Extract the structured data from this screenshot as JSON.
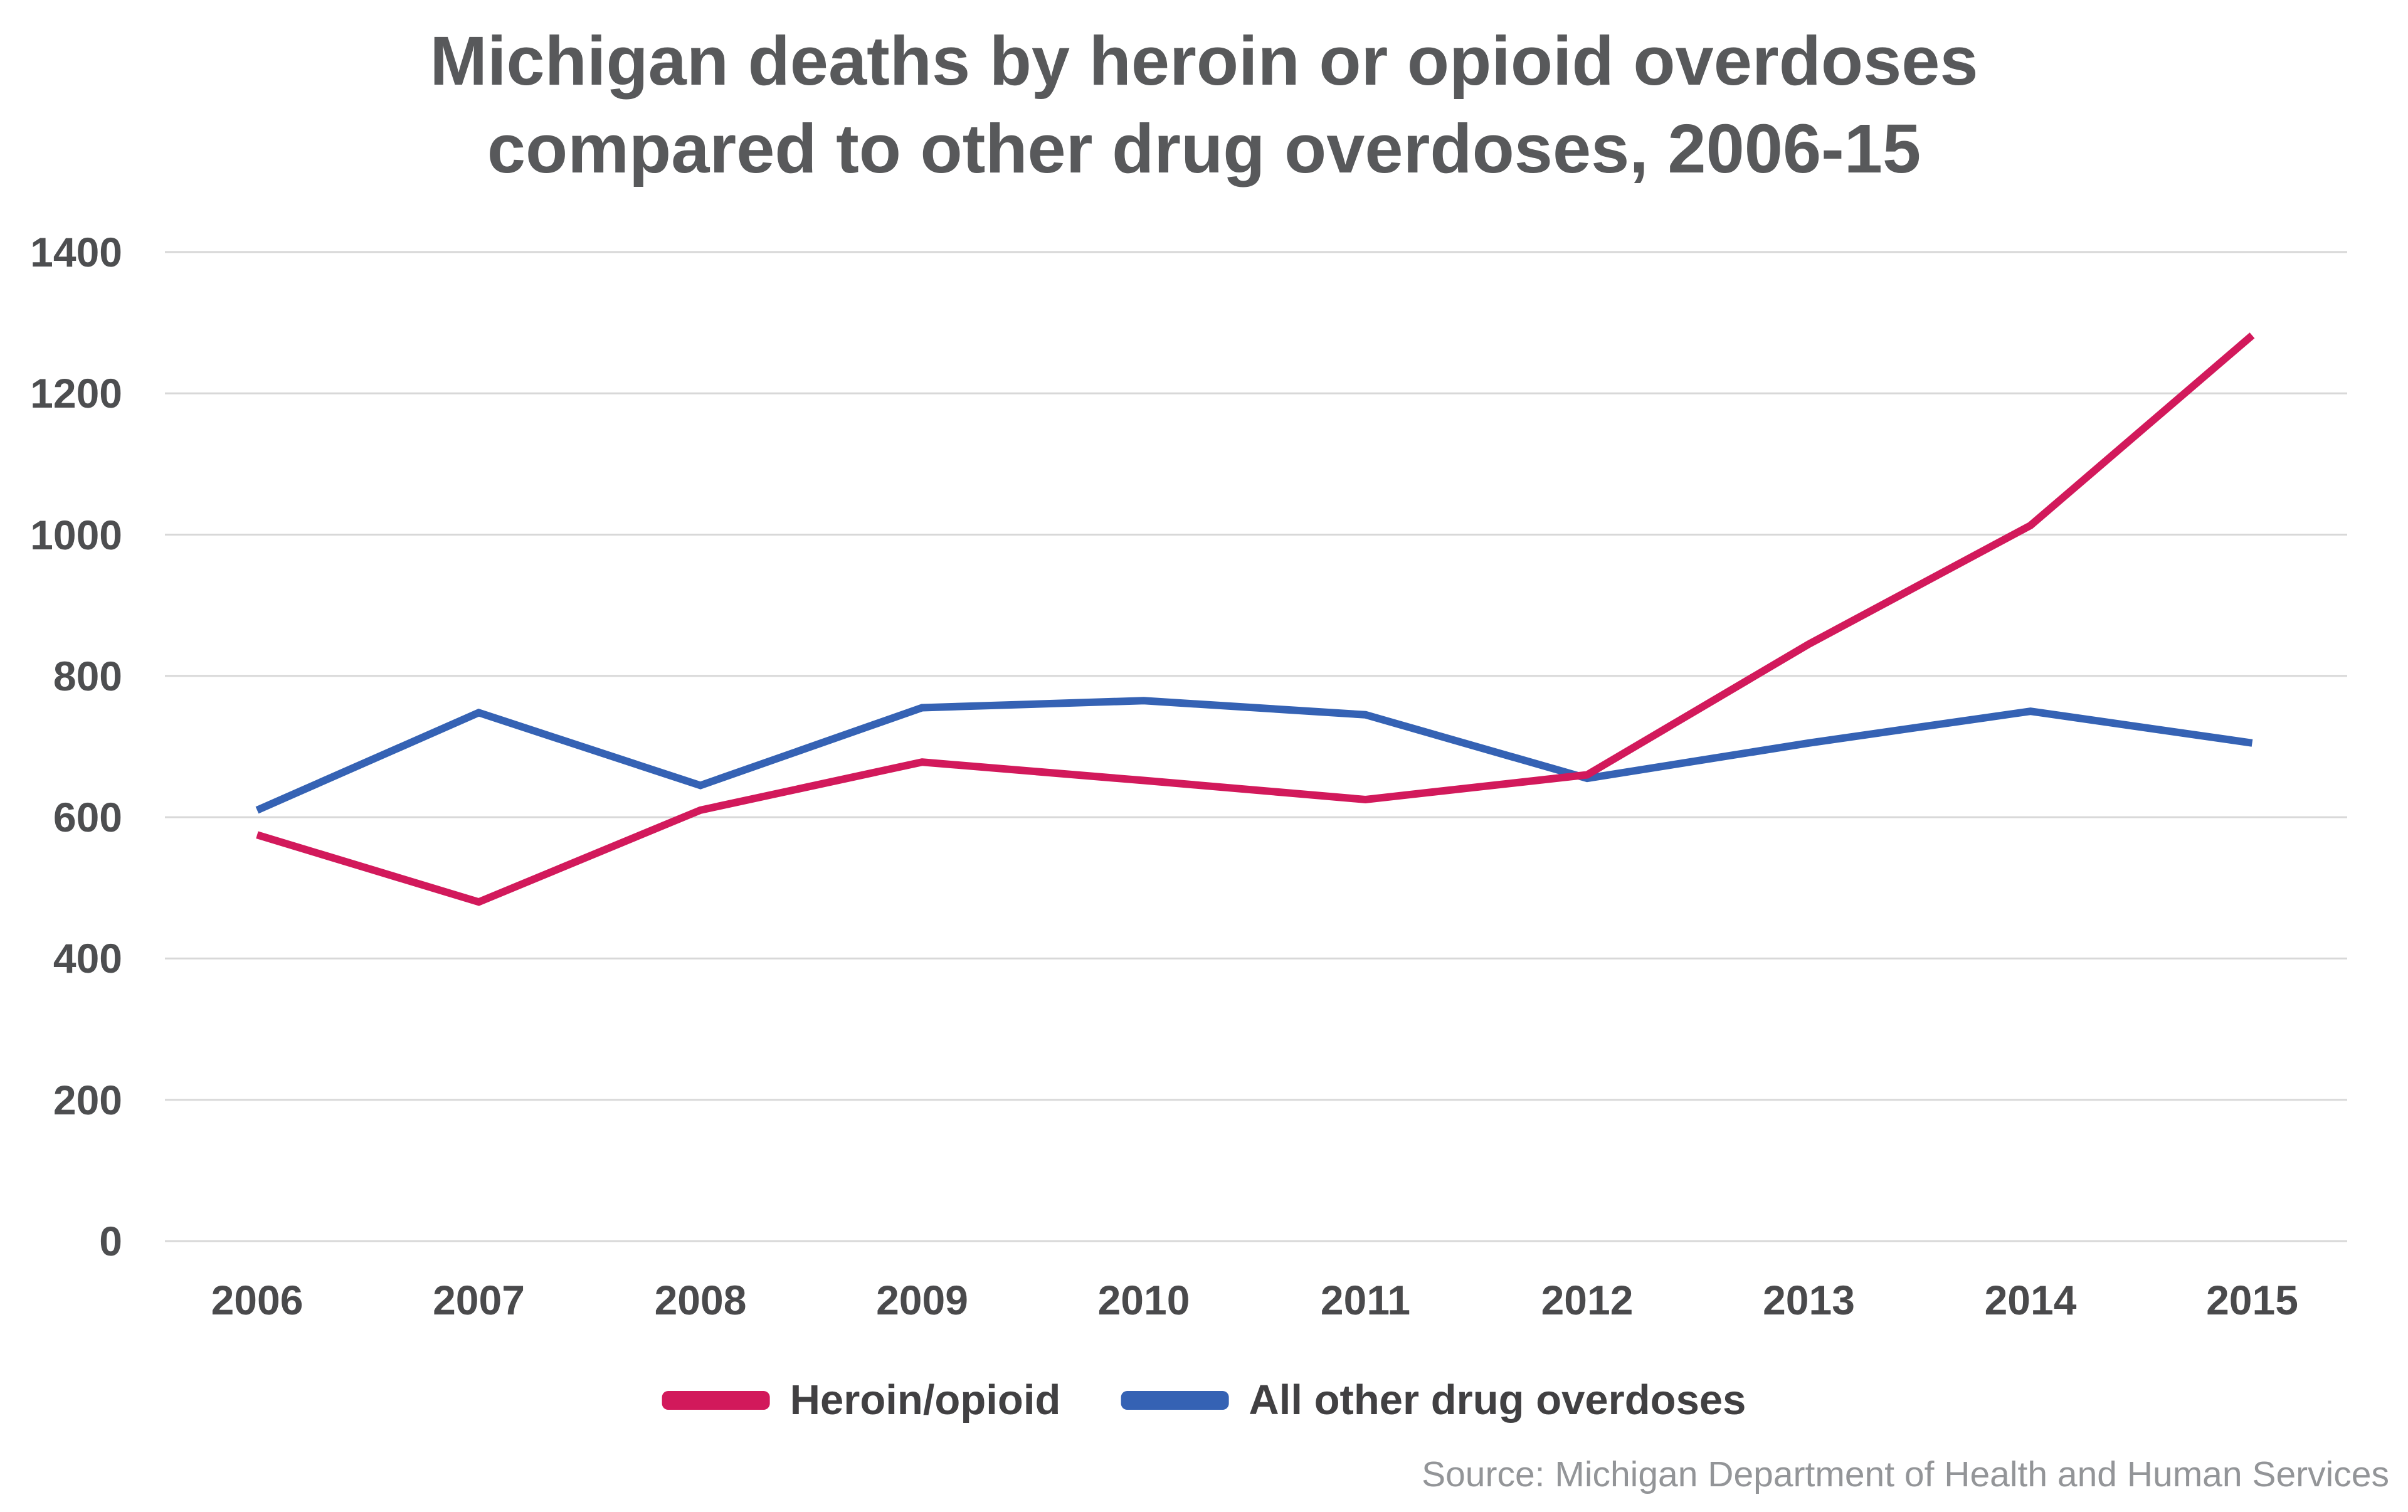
{
  "title": {
    "line1": "Michigan deaths by heroin or opioid overdoses",
    "line2": "compared to other drug overdoses, 2006-15"
  },
  "source": "Source: Michigan Department of Health and Human Services",
  "legend": [
    {
      "label": "Heroin/opioid",
      "color": "#d2195b"
    },
    {
      "label": "All other drug overdoses",
      "color": "#3562b4"
    }
  ],
  "colors": {
    "heroin_opioid": "#d2195b",
    "all_other": "#3562b4",
    "gridline": "#d8d8d8",
    "title_text": "#58595b",
    "tick_text": "#4d4e50",
    "source_text": "#939598"
  },
  "chart_data": {
    "type": "line",
    "title": "Michigan deaths by heroin or opioid overdoses compared to other drug overdoses, 2006-15",
    "categories": [
      "2006",
      "2007",
      "2008",
      "2009",
      "2010",
      "2011",
      "2012",
      "2013",
      "2014",
      "2015"
    ],
    "series": [
      {
        "name": "All other drug overdoses",
        "color": "#3562b4",
        "values": [
          610,
          748,
          645,
          755,
          765,
          745,
          655,
          705,
          750,
          705
        ]
      },
      {
        "name": "Heroin/opioid",
        "color": "#d2195b",
        "values": [
          575,
          480,
          610,
          678,
          652,
          625,
          660,
          845,
          1013,
          1282
        ]
      }
    ],
    "xlabel": "",
    "ylabel": "",
    "y_ticks": [
      0,
      200,
      400,
      600,
      800,
      1000,
      1200,
      1400
    ],
    "ylim": [
      0,
      1400
    ],
    "grid": "horizontal-only",
    "legend_position": "bottom"
  }
}
